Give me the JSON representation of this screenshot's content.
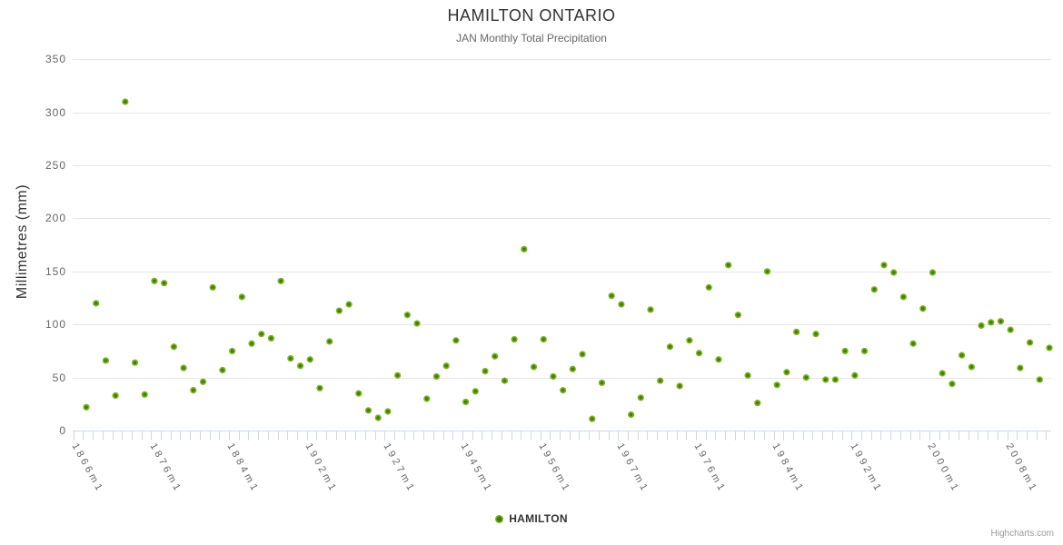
{
  "chart": {
    "credits": "Highcharts.com"
  },
  "chart_data": {
    "type": "scatter",
    "title": "HAMILTON ONTARIO",
    "subtitle": "JAN Monthly Total Precipitation",
    "xlabel": "",
    "ylabel": "Millimetres (mm)",
    "ylim": [
      0,
      350
    ],
    "yticks": [
      0,
      50,
      100,
      150,
      200,
      250,
      300,
      350
    ],
    "x_tick_labels": [
      "1866m1",
      "1876m1",
      "1884m1",
      "1902m1",
      "1927m1",
      "1945m1",
      "1956m1",
      "1967m1",
      "1976m1",
      "1984m1",
      "1992m1",
      "2000m1",
      "2008m1"
    ],
    "x_label_every": 8,
    "grid": true,
    "legend_position": "bottom-center",
    "series": [
      {
        "name": "HAMILTON",
        "marker": {
          "ring_color": "#77b41f",
          "center_color": "#477a0d",
          "radius": 3.6
        },
        "values": [
          22,
          120,
          66,
          33,
          310,
          64,
          34,
          141,
          139,
          79,
          59,
          38,
          46,
          135,
          57,
          75,
          126,
          82,
          91,
          87,
          141,
          68,
          61,
          67,
          40,
          84,
          113,
          119,
          35,
          19,
          12,
          18,
          52,
          109,
          101,
          30,
          51,
          61,
          85,
          27,
          37,
          56,
          70,
          47,
          86,
          171,
          60,
          86,
          51,
          38,
          58,
          72,
          11,
          45,
          127,
          119,
          15,
          31,
          114,
          47,
          79,
          42,
          85,
          73,
          135,
          67,
          156,
          109,
          52,
          26,
          150,
          43,
          55,
          93,
          50,
          91,
          48,
          48,
          75,
          52,
          75,
          133,
          156,
          149,
          126,
          82,
          115,
          149,
          54,
          44,
          71,
          60,
          99,
          102,
          103,
          95,
          59,
          83,
          48,
          78
        ]
      }
    ],
    "colors": {
      "grid": "#e6e6e6",
      "axis": "#ccd6eb",
      "title": "#333333",
      "subtitle": "#666666",
      "axis_labels": "#666666",
      "y_title": "#333333",
      "legend_text": "#333333",
      "credits": "#999999",
      "background": "#ffffff"
    }
  }
}
